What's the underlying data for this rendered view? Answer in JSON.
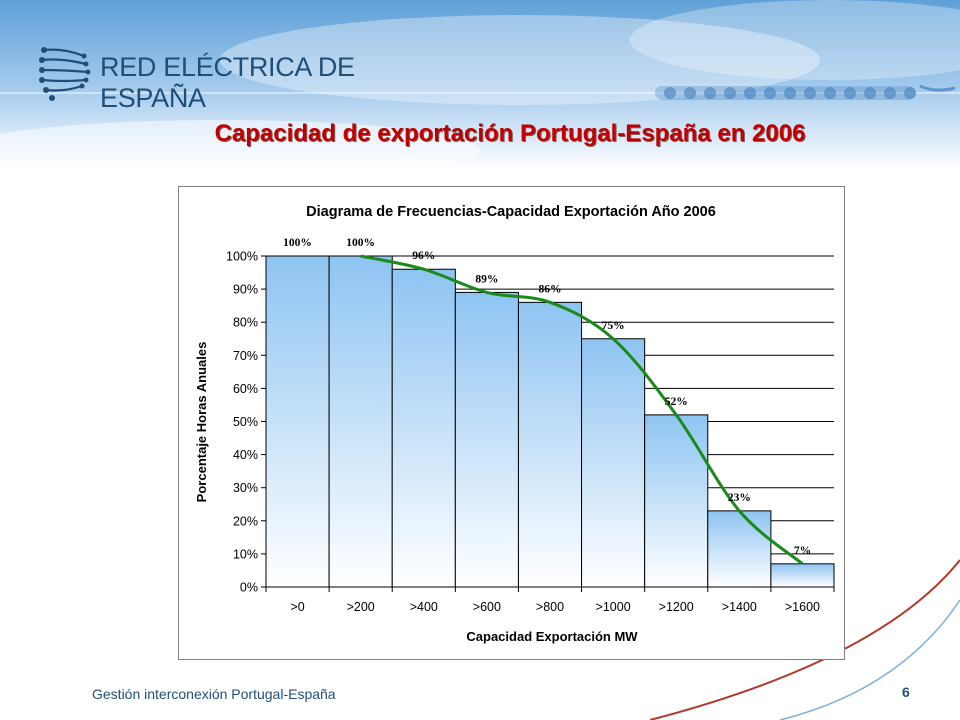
{
  "header": {
    "brand": "RED ELÉCTRICA DE ESPAÑA",
    "slide_title": "Capacidad de exportación Portugal-España en 2006"
  },
  "footer": {
    "text": "Gestión interconexión Portugal-España",
    "page_number": "6"
  },
  "colors": {
    "title": "#c00000",
    "brand": "#1f4f79",
    "bar_top": "#8ec4f2",
    "bar_bottom": "#ffffff",
    "trend_line": "#1a8a1a"
  },
  "icons": [
    "red-electrica-logo-icon",
    "pylon-band-icon"
  ],
  "chart_data": {
    "type": "bar",
    "title": "Diagrama de Frecuencias-Capacidad Exportación Año 2006",
    "xlabel": "Capacidad Exportación MW",
    "ylabel": "Porcentaje Horas Anuales",
    "categories": [
      ">0",
      ">200",
      ">400",
      ">600",
      ">800",
      ">1000",
      ">1200",
      ">1400",
      ">1600"
    ],
    "values": [
      100,
      100,
      96,
      89,
      86,
      75,
      52,
      23,
      7
    ],
    "data_labels": [
      "100%",
      "100%",
      "96%",
      "89%",
      "86%",
      "75%",
      "52%",
      "23%",
      "7%"
    ],
    "ylim": [
      0,
      100
    ],
    "yticks": [
      "0%",
      "10%",
      "20%",
      "30%",
      "40%",
      "50%",
      "60%",
      "70%",
      "80%",
      "90%",
      "100%"
    ],
    "grid": true,
    "trendline": "polynomial"
  }
}
